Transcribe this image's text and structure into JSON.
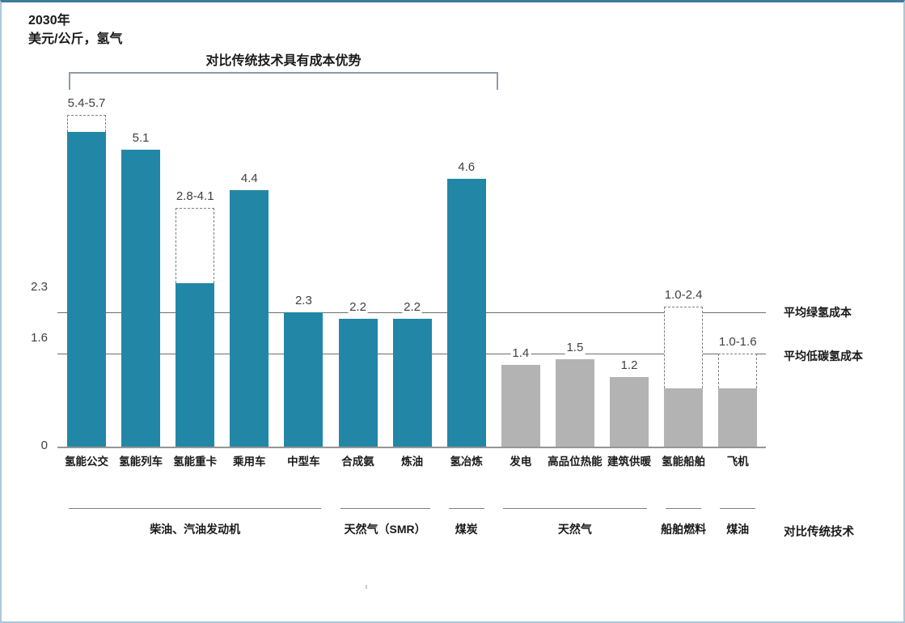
{
  "header": {
    "title": "2030年",
    "subtitle": "美元/公斤，氢气"
  },
  "chart_data": {
    "type": "bar",
    "title": "2030年",
    "unit_label": "美元/公斤，氢气",
    "bracket_annotation": "对比传统技术具有成本优势",
    "ylim": [
      0,
      6.3
    ],
    "yaxis_ticks": [
      {
        "text": "2.3",
        "value": 2.3
      },
      {
        "text": "1.6",
        "value": 1.6
      },
      {
        "text": "0",
        "value": 0
      }
    ],
    "reference_lines": [
      {
        "value": 2.3,
        "label": "平均绿氢成本"
      },
      {
        "value": 1.6,
        "label": "平均低碳氢成本"
      }
    ],
    "bars": [
      {
        "label": "氢能公交",
        "value": 5.4,
        "range_max": 5.7,
        "display": "5.4-5.7",
        "color": "teal"
      },
      {
        "label": "氢能列车",
        "value": 5.1,
        "range_max": null,
        "display": "5.1",
        "color": "teal"
      },
      {
        "label": "氢能重卡",
        "value": 2.8,
        "range_max": 4.1,
        "display": "2.8-4.1",
        "color": "teal"
      },
      {
        "label": "乘用车",
        "value": 4.4,
        "range_max": null,
        "display": "4.4",
        "color": "teal"
      },
      {
        "label": "中型车",
        "value": 2.3,
        "range_max": null,
        "display": "2.3",
        "color": "teal"
      },
      {
        "label": "合成氨",
        "value": 2.2,
        "range_max": null,
        "display": "2.2",
        "color": "teal"
      },
      {
        "label": "炼油",
        "value": 2.2,
        "range_max": null,
        "display": "2.2",
        "color": "teal"
      },
      {
        "label": "氢冶炼",
        "value": 4.6,
        "range_max": null,
        "display": "4.6",
        "color": "teal"
      },
      {
        "label": "发电",
        "value": 1.4,
        "range_max": null,
        "display": "1.4",
        "color": "gray"
      },
      {
        "label": "高品位热能",
        "value": 1.5,
        "range_max": null,
        "display": "1.5",
        "color": "gray"
      },
      {
        "label": "建筑供暖",
        "value": 1.2,
        "range_max": null,
        "display": "1.2",
        "color": "gray"
      },
      {
        "label": "氢能船舶",
        "value": 1.0,
        "range_max": 2.4,
        "display": "1.0-2.4",
        "color": "gray"
      },
      {
        "label": "飞机",
        "value": 1.0,
        "range_max": 1.6,
        "display": "1.0-1.6",
        "color": "gray"
      }
    ],
    "comparison_groups": [
      {
        "label": "柴油、汽油发动机",
        "start": 0,
        "end": 4
      },
      {
        "label": "天然气（SMR）",
        "start": 5,
        "end": 6
      },
      {
        "label": "煤炭",
        "start": 7,
        "end": 7
      },
      {
        "label": "天然气",
        "start": 8,
        "end": 10
      },
      {
        "label": "船舶燃料",
        "start": 11,
        "end": 11
      },
      {
        "label": "煤油",
        "start": 12,
        "end": 12
      }
    ],
    "groups_axis_label": "对比传统技术",
    "legend_position": "none",
    "grid": false,
    "colors": {
      "teal": "#2287a6",
      "gray": "#b3b3b3",
      "reference_line": "#6e6e6e",
      "frame_top": "#3d7c9b",
      "frame_side": "#aac9dc"
    }
  }
}
